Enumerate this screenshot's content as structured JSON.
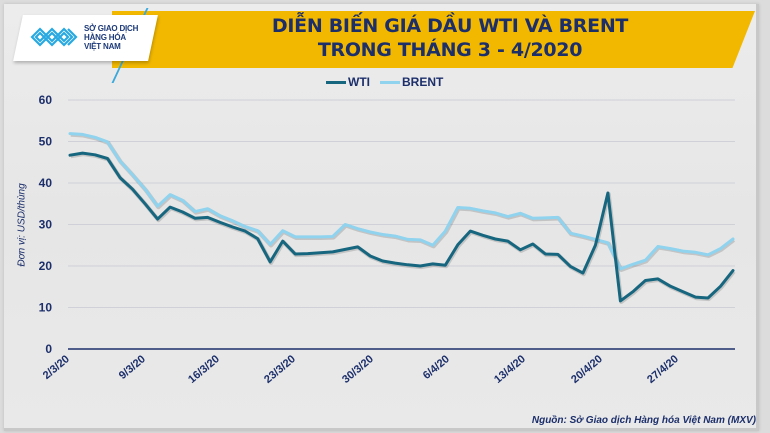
{
  "header": {
    "logo_lines": [
      "SỞ GIAO DỊCH",
      "HÀNG HÓA",
      "VIỆT NAM"
    ],
    "title_line1": "DIỄN BIẾN GIÁ DẦU WTI VÀ BRENT",
    "title_line2": "TRONG THÁNG 3 - 4/2020"
  },
  "colors": {
    "banner": "#f2b800",
    "title": "#1c2f6b",
    "wti": "#17667f",
    "brent": "#8fd3ef",
    "grid": "#cfd0d8",
    "axis": "#1c2f6b"
  },
  "source": "Nguồn: Sở Giao dịch Hàng hóa Việt Nam (MXV)",
  "chart_data": {
    "type": "line",
    "title": "DIỄN BIẾN GIÁ DẦU WTI VÀ BRENT TRONG THÁNG 3 - 4/2020",
    "xlabel": "",
    "ylabel": "Đơn vị: USD/thùng",
    "ylim": [
      0,
      60
    ],
    "yticks": [
      0,
      10,
      20,
      30,
      40,
      50,
      60
    ],
    "grid": true,
    "legend_position": "top",
    "xtick_labels": [
      "2/3/20",
      "9/3/20",
      "16/3/20",
      "23/3/20",
      "30/3/20",
      "6/4/20",
      "13/4/20",
      "20/4/20",
      "27/4/20"
    ],
    "xtick_index": [
      0,
      5,
      10,
      15,
      20,
      25,
      29,
      34,
      39
    ],
    "x_count": 44,
    "series": [
      {
        "name": "WTI",
        "values": [
          46.7,
          47.2,
          46.8,
          45.9,
          41.3,
          38.5,
          35.0,
          31.3,
          34.2,
          33.0,
          31.5,
          31.7,
          30.5,
          29.4,
          28.4,
          26.6,
          21.0,
          26.0,
          22.9,
          23.0,
          23.2,
          23.4,
          24.0,
          24.6,
          22.4,
          21.2,
          20.7,
          20.3,
          20.0,
          20.5,
          20.2,
          25.1,
          28.4,
          27.4,
          26.5,
          26.0,
          23.9,
          25.3,
          22.9,
          22.8,
          22.7,
          22.6,
          20.2,
          20.0
        ]
      },
      {
        "name": "BRENT",
        "values": [
          51.9,
          51.7,
          51.0,
          49.9,
          45.3,
          42.0,
          38.5,
          34.4,
          37.2,
          35.8,
          33.1,
          33.8,
          32.1,
          30.9,
          29.5,
          28.5,
          25.2,
          28.5,
          27.0,
          27.0,
          27.0,
          27.1,
          30.0,
          29.0,
          28.2,
          27.6,
          27.2,
          26.4,
          26.3,
          25.0,
          28.4,
          34.1,
          33.9,
          33.3,
          32.8,
          31.9,
          32.7,
          31.5,
          31.6,
          31.7,
          31.7,
          29.6,
          27.6,
          27.8
        ]
      }
    ],
    "tail_series": {
      "note": "continuation from ~16/4 to 30/4",
      "WTI": [
        19.9,
        18.3,
        25.0,
        37.6,
        11.6,
        13.8,
        16.5,
        16.9,
        15.1,
        13.8,
        12.5,
        12.3,
        15.1,
        18.9
      ],
      "BRENT": [
        27.9,
        27.2,
        26.4,
        25.6,
        19.3,
        20.4,
        21.4,
        24.7,
        24.2,
        23.6,
        23.3,
        22.7,
        24.2,
        26.5
      ]
    }
  }
}
